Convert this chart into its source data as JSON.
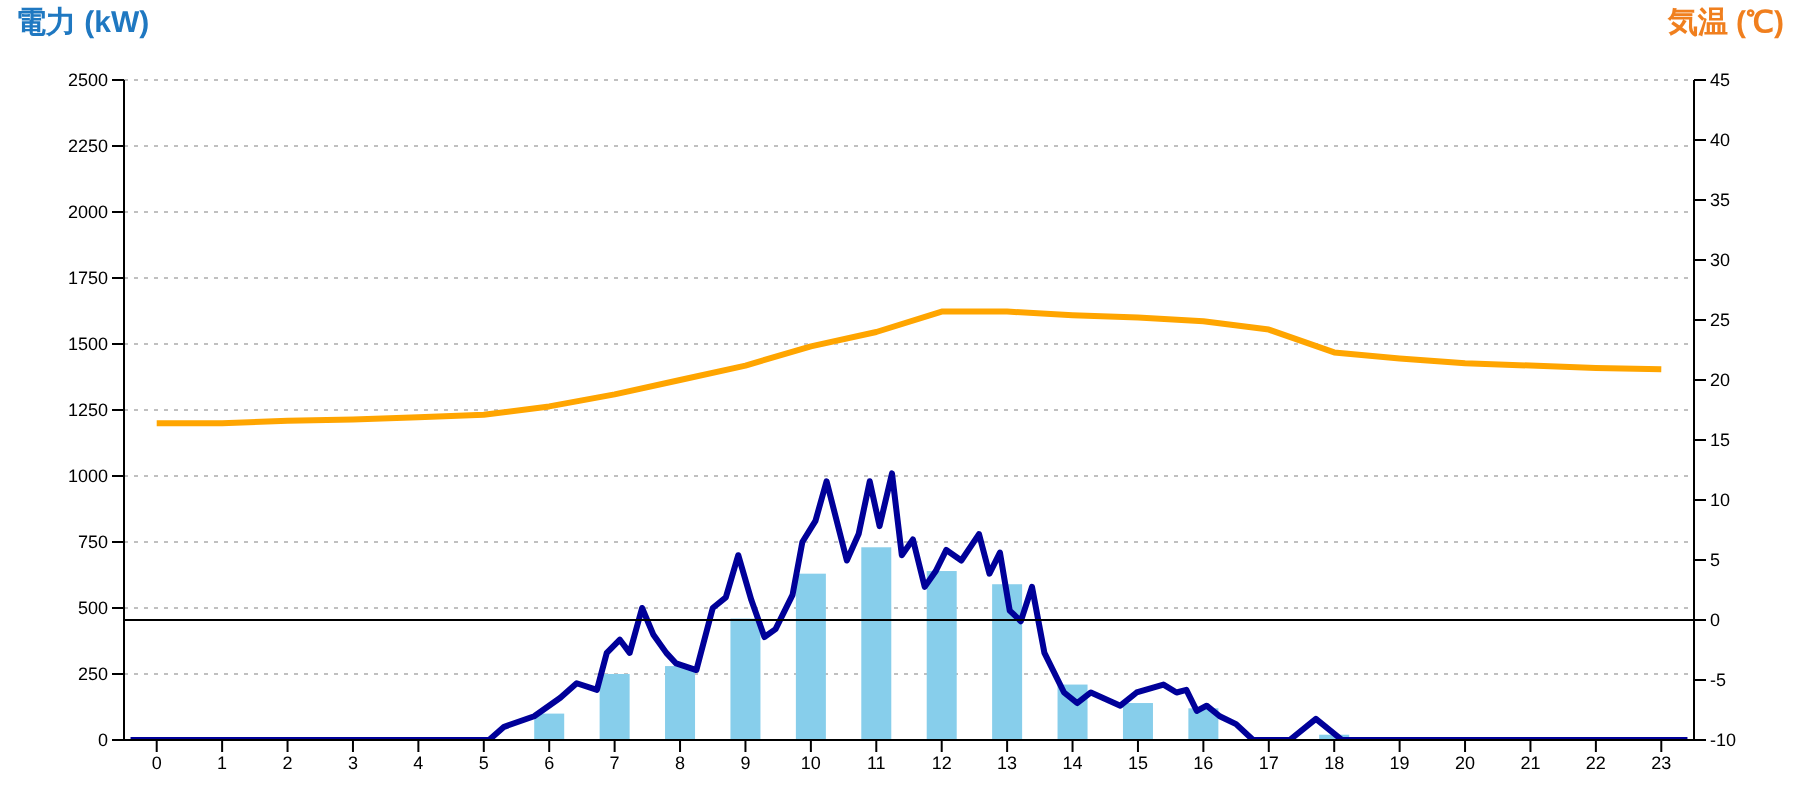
{
  "chart_data": {
    "type": "bar",
    "ylabel": "電力 (kW)",
    "y2label": "気温 (℃)",
    "x": [
      0,
      1,
      2,
      3,
      4,
      5,
      6,
      7,
      8,
      9,
      10,
      11,
      12,
      13,
      14,
      15,
      16,
      17,
      18,
      19,
      20,
      21,
      22,
      23
    ],
    "xlim": [
      -0.5,
      23.5
    ],
    "xticks": [
      0,
      1,
      2,
      3,
      4,
      5,
      6,
      7,
      8,
      9,
      10,
      11,
      12,
      13,
      14,
      15,
      16,
      17,
      18,
      19,
      20,
      21,
      22,
      23
    ],
    "series": [
      {
        "color": "#87ceeb",
        "values": [
          0,
          0,
          0,
          0,
          0,
          0,
          100,
          250,
          280,
          460,
          630,
          730,
          640,
          590,
          210,
          140,
          120,
          10,
          20,
          0,
          0,
          0,
          0,
          0
        ]
      },
      {
        "type": "line",
        "color": "#000099",
        "x": [
          -0.4,
          5.08,
          5.31,
          5.77,
          6.17,
          6.42,
          6.73,
          6.88,
          7.08,
          7.23,
          7.42,
          7.59,
          7.79,
          7.94,
          8.25,
          8.5,
          8.7,
          8.89,
          9.09,
          9.29,
          9.46,
          9.72,
          9.87,
          10.07,
          10.24,
          10.55,
          10.73,
          10.9,
          11.05,
          11.24,
          11.39,
          11.56,
          11.74,
          11.91,
          12.07,
          12.3,
          12.57,
          12.73,
          12.89,
          13.04,
          13.21,
          13.38,
          13.57,
          13.87,
          14.07,
          14.28,
          14.73,
          14.98,
          15.39,
          15.59,
          15.74,
          15.9,
          16.05,
          16.25,
          16.5,
          16.76,
          17.32,
          17.72,
          18.12,
          23.4
        ],
        "values": [
          0,
          0,
          50,
          90,
          160,
          215,
          190,
          330,
          380,
          330,
          500,
          400,
          330,
          290,
          265,
          500,
          540,
          700,
          530,
          390,
          420,
          550,
          750,
          830,
          980,
          680,
          780,
          980,
          810,
          1010,
          700,
          760,
          580,
          640,
          720,
          680,
          780,
          630,
          710,
          490,
          450,
          580,
          330,
          180,
          140,
          180,
          130,
          180,
          210,
          180,
          190,
          110,
          130,
          90,
          60,
          0,
          0,
          80,
          0,
          0
        ]
      },
      {
        "type": "line",
        "axis": "y2",
        "color": "#ffa500",
        "values": [
          16.4,
          16.4,
          16.6,
          16.7,
          16.9,
          17.1,
          17.8,
          18.8,
          20,
          21.2,
          22.8,
          24,
          25.7,
          25.7,
          25.4,
          25.2,
          24.9,
          24.2,
          22.3,
          21.8,
          21.4,
          21.2,
          21,
          20.9
        ]
      }
    ],
    "ylim": [
      0,
      2500
    ],
    "yticks": [
      0,
      250,
      500,
      750,
      1000,
      1250,
      1500,
      1750,
      2000,
      2250,
      2500
    ],
    "y2lim": [
      -10,
      45
    ],
    "y2ticks": [
      -10,
      -5,
      0,
      5,
      10,
      15,
      20,
      25,
      30,
      35,
      40,
      45
    ],
    "ref_lines": [
      {
        "axis": "y2",
        "value": 0,
        "color": "#000000"
      }
    ],
    "grid": "y",
    "legend": false,
    "marker": "none"
  }
}
